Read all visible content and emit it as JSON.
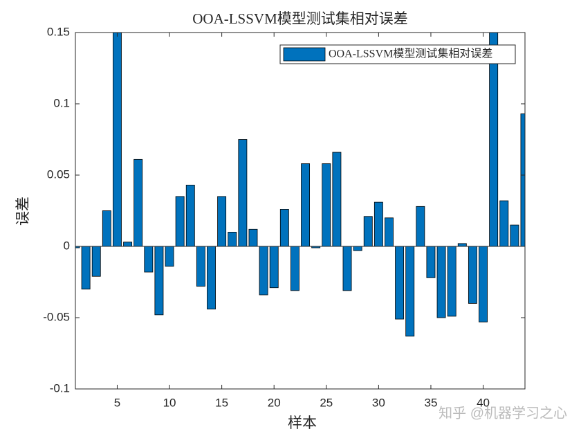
{
  "chart_data": {
    "type": "bar",
    "title": "OOA-LSSVM模型测试集相对误差",
    "xlabel": "样本",
    "ylabel": "误差",
    "legend_position": "upper right",
    "watermark": "知乎 @机器学习之心",
    "series": [
      {
        "name": "OOA-LSSVM模型测试集相对误差",
        "color": "#0072bd",
        "x": [
          1,
          2,
          3,
          4,
          5,
          6,
          7,
          8,
          9,
          10,
          11,
          12,
          13,
          14,
          15,
          16,
          17,
          18,
          19,
          20,
          21,
          22,
          23,
          24,
          25,
          26,
          27,
          28,
          29,
          30,
          31,
          32,
          33,
          34,
          35,
          36,
          37,
          38,
          39,
          40,
          41,
          42,
          43,
          44
        ],
        "values": [
          -0.001,
          -0.03,
          -0.021,
          0.025,
          0.15,
          0.003,
          0.061,
          -0.018,
          -0.048,
          -0.014,
          0.035,
          0.043,
          -0.028,
          -0.044,
          0.035,
          0.01,
          0.075,
          0.012,
          -0.034,
          -0.029,
          0.026,
          -0.031,
          0.058,
          -0.001,
          0.058,
          0.066,
          -0.031,
          -0.003,
          0.021,
          0.031,
          0.02,
          -0.051,
          -0.063,
          0.028,
          -0.022,
          -0.05,
          -0.049,
          0.002,
          -0.04,
          -0.053,
          0.15,
          0.032,
          0.015,
          0.093
        ]
      }
    ],
    "xlim": [
      1,
      44
    ],
    "xticks": [
      5,
      10,
      15,
      20,
      25,
      30,
      35,
      40
    ],
    "ylim": [
      -0.1,
      0.15
    ],
    "yticks": [
      -0.1,
      -0.05,
      0,
      0.05,
      0.1,
      0.15
    ]
  }
}
